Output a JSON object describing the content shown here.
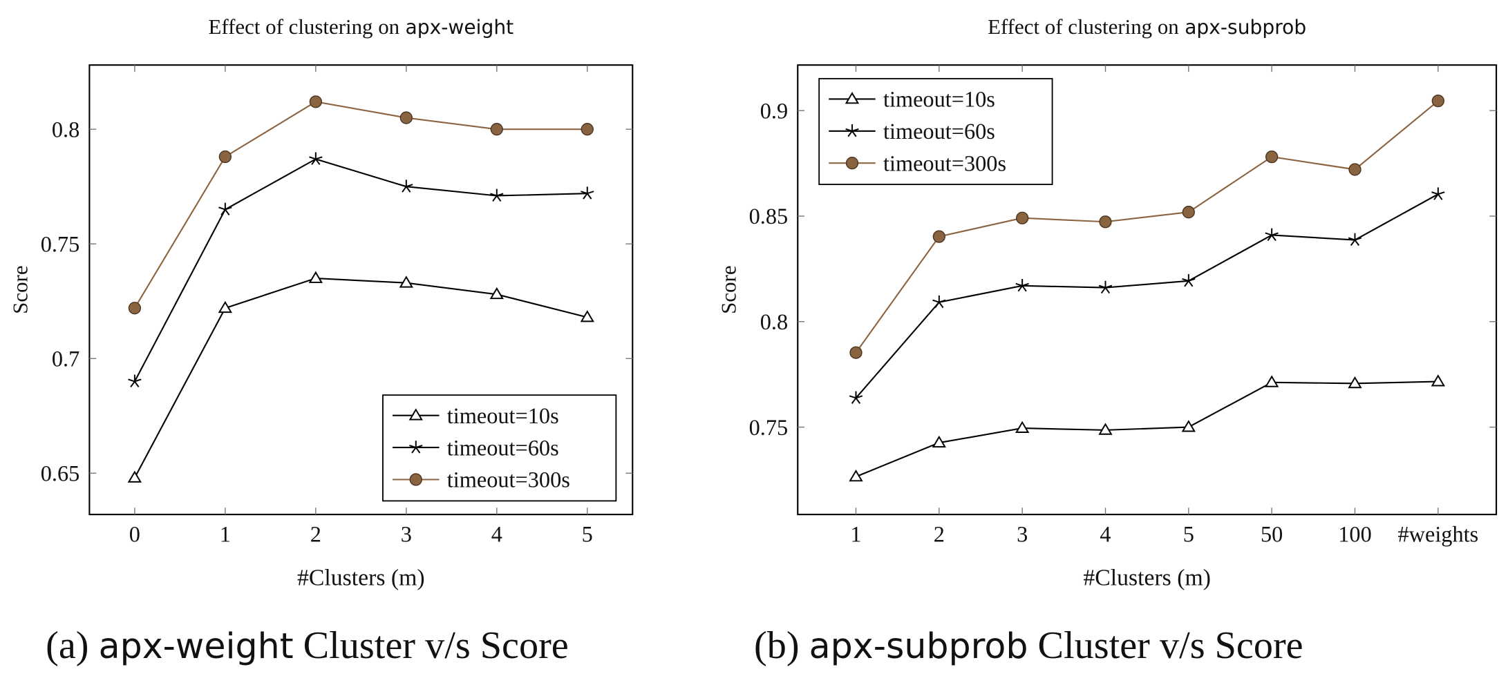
{
  "chart_data": [
    {
      "type": "line",
      "title": "Effect of clustering on",
      "title_code": "apx-weight",
      "caption_label": "(a)",
      "caption_code": "apx-weight",
      "caption_text": "Cluster v/s Score",
      "xlabel": "#Clusters (m)",
      "ylabel": "Score",
      "x": [
        0,
        1,
        2,
        3,
        4,
        5
      ],
      "xlim": [
        -0.5,
        5.5
      ],
      "xticks": [
        0,
        1,
        2,
        3,
        4,
        5
      ],
      "ylim": [
        0.632,
        0.828
      ],
      "yticks": [
        0.65,
        0.7,
        0.75,
        0.8
      ],
      "legend": "lower right",
      "series": [
        {
          "name": "timeout=10s",
          "color": "#000000",
          "marker": "triangle",
          "values": [
            0.648,
            0.722,
            0.735,
            0.733,
            0.728,
            0.718
          ]
        },
        {
          "name": "timeout=60s",
          "color": "#000000",
          "marker": "star",
          "values": [
            0.69,
            0.765,
            0.787,
            0.775,
            0.771,
            0.772
          ]
        },
        {
          "name": "timeout=300s",
          "color": "#8b6340",
          "marker": "circle",
          "values": [
            0.722,
            0.788,
            0.812,
            0.805,
            0.8,
            0.8
          ]
        }
      ]
    },
    {
      "type": "line",
      "title": "Effect of clustering on",
      "title_code": "apx-subprob",
      "caption_label": "(b)",
      "caption_code": "apx-subprob",
      "caption_text": "Cluster v/s Score",
      "xlabel": "#Clusters (m)",
      "ylabel": "Score",
      "categories": [
        "1",
        "2",
        "3",
        "4",
        "5",
        "50",
        "100",
        "#weights"
      ],
      "ylim": [
        0.7086,
        0.9216
      ],
      "yticks": [
        0.75,
        0.8,
        0.85,
        0.9
      ],
      "legend": "upper left",
      "series": [
        {
          "name": "timeout=10s",
          "color": "#000000",
          "marker": "triangle",
          "values": [
            0.7265,
            0.7426,
            0.7495,
            0.7486,
            0.75,
            0.7712,
            0.7707,
            0.7716
          ]
        },
        {
          "name": "timeout=60s",
          "color": "#000000",
          "marker": "star",
          "values": [
            0.7638,
            0.8092,
            0.817,
            0.8161,
            0.8193,
            0.841,
            0.8387,
            0.8604
          ]
        },
        {
          "name": "timeout=300s",
          "color": "#8b6340",
          "marker": "circle",
          "values": [
            0.7853,
            0.8403,
            0.8491,
            0.8473,
            0.8519,
            0.8781,
            0.8721,
            0.9046
          ]
        }
      ]
    }
  ]
}
